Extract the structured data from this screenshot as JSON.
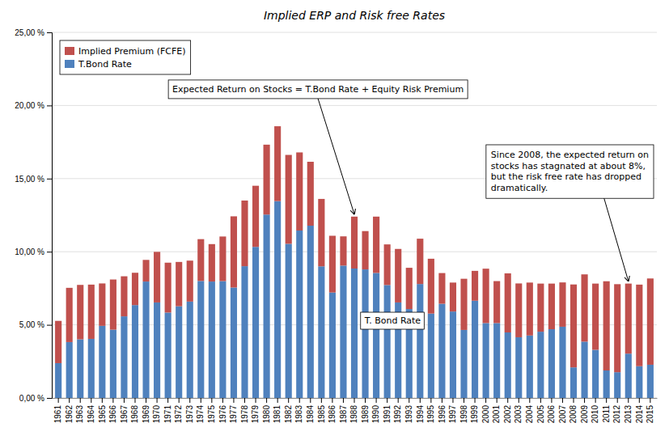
{
  "chart_data": {
    "type": "bar",
    "stacked": true,
    "title": "Implied ERP and Risk free Rates",
    "categories": [
      "1961",
      "1962",
      "1963",
      "1964",
      "1965",
      "1966",
      "1967",
      "1968",
      "1969",
      "1970",
      "1971",
      "1972",
      "1973",
      "1974",
      "1975",
      "1976",
      "1977",
      "1978",
      "1979",
      "1980",
      "1981",
      "1982",
      "1983",
      "1984",
      "1985",
      "1986",
      "1987",
      "1988",
      "1989",
      "1990",
      "1991",
      "1992",
      "1993",
      "1994",
      "1995",
      "1996",
      "1997",
      "1998",
      "1999",
      "2000",
      "2001",
      "2002",
      "2003",
      "2004",
      "2005",
      "2006",
      "2007",
      "2008",
      "2009",
      "2010",
      "2011",
      "2012",
      "2013",
      "2014",
      "2015"
    ],
    "series": [
      {
        "name": "T.Bond Rate",
        "color": "#4F81BD",
        "values": [
          0.0238,
          0.0382,
          0.0401,
          0.0404,
          0.0493,
          0.0467,
          0.0558,
          0.0635,
          0.0796,
          0.0653,
          0.0584,
          0.0627,
          0.0659,
          0.08,
          0.0796,
          0.0799,
          0.0755,
          0.0901,
          0.1033,
          0.1254,
          0.1346,
          0.1054,
          0.1145,
          0.1178,
          0.09,
          0.0721,
          0.0905,
          0.0885,
          0.0879,
          0.0855,
          0.0772,
          0.0653,
          0.0608,
          0.0779,
          0.0577,
          0.0644,
          0.0591,
          0.0465,
          0.0665,
          0.0512,
          0.0512,
          0.0448,
          0.0415,
          0.0427,
          0.0453,
          0.047,
          0.0487,
          0.0209,
          0.0385,
          0.0329,
          0.0188,
          0.0176,
          0.0303,
          0.0217,
          0.0227
        ]
      },
      {
        "name": "Implied Premium (FCFE)",
        "color": "#C0504D",
        "values": [
          0.0289,
          0.0371,
          0.0372,
          0.0371,
          0.029,
          0.0343,
          0.0274,
          0.0221,
          0.0148,
          0.0346,
          0.0341,
          0.0303,
          0.028,
          0.0286,
          0.0256,
          0.0305,
          0.0487,
          0.0449,
          0.0418,
          0.0478,
          0.0512,
          0.0608,
          0.0534,
          0.0437,
          0.0461,
          0.0388,
          0.02,
          0.0355,
          0.0262,
          0.0385,
          0.0278,
          0.0366,
          0.0282,
          0.031,
          0.0375,
          0.021,
          0.0198,
          0.035,
          0.0204,
          0.0372,
          0.0287,
          0.0404,
          0.0368,
          0.0362,
          0.0329,
          0.0312,
          0.0303,
          0.0567,
          0.046,
          0.0453,
          0.061,
          0.0602,
          0.0479,
          0.0558,
          0.059
        ]
      }
    ],
    "ylim": [
      0,
      0.25
    ],
    "yticks": [
      {
        "value": 0.0,
        "label": "0,00 %"
      },
      {
        "value": 0.05,
        "label": "5,00 %"
      },
      {
        "value": 0.1,
        "label": "10,00 %"
      },
      {
        "value": 0.15,
        "label": "15,00 %"
      },
      {
        "value": 0.2,
        "label": "20,00 %"
      },
      {
        "value": 0.25,
        "label": "25,00 %"
      }
    ],
    "grid": true,
    "legend": "upper left",
    "annotations": [
      "Expected Return on Stocks = T.Bond Rate + Equity Risk Premium",
      "Since 2008, the expected return on\nstocks has stagnated at about 8%,\nbut the risk free rate has dropped\ndramatically.",
      "T. Bond Rate"
    ]
  }
}
